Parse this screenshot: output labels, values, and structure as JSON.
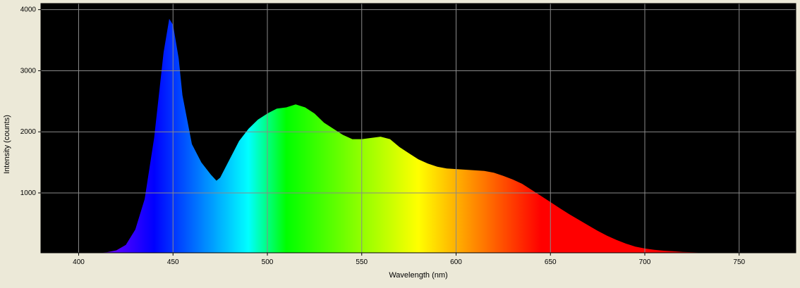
{
  "chart_data": {
    "type": "spectrum",
    "x_label": "Wavelength (nm)",
    "y_label": "Intensity (counts)",
    "x": [
      410,
      415,
      420,
      425,
      430,
      435,
      440,
      445,
      448,
      450,
      453,
      455,
      460,
      465,
      470,
      473,
      475,
      480,
      485,
      490,
      495,
      500,
      505,
      510,
      515,
      520,
      525,
      530,
      535,
      540,
      545,
      550,
      555,
      560,
      565,
      570,
      575,
      580,
      585,
      590,
      595,
      600,
      605,
      610,
      615,
      620,
      625,
      630,
      635,
      640,
      645,
      650,
      655,
      660,
      665,
      670,
      675,
      680,
      685,
      690,
      695,
      700,
      705,
      710,
      715,
      720,
      730,
      740,
      750,
      760
    ],
    "values": [
      20,
      30,
      60,
      150,
      400,
      900,
      1900,
      3300,
      3850,
      3750,
      3200,
      2600,
      1800,
      1500,
      1300,
      1200,
      1250,
      1550,
      1850,
      2050,
      2200,
      2300,
      2380,
      2400,
      2450,
      2400,
      2300,
      2150,
      2050,
      1950,
      1880,
      1880,
      1900,
      1920,
      1880,
      1750,
      1650,
      1550,
      1480,
      1430,
      1400,
      1390,
      1380,
      1370,
      1360,
      1330,
      1280,
      1220,
      1150,
      1050,
      950,
      850,
      750,
      650,
      560,
      470,
      380,
      300,
      230,
      170,
      120,
      90,
      70,
      55,
      45,
      35,
      25,
      22,
      21,
      20
    ],
    "xlim": [
      380,
      780
    ],
    "ylim": [
      20,
      4100
    ],
    "xticks": [
      400,
      450,
      500,
      550,
      600,
      650,
      700,
      750
    ],
    "yticks": [
      1000,
      2000,
      3000,
      4000
    ],
    "grid": true
  }
}
